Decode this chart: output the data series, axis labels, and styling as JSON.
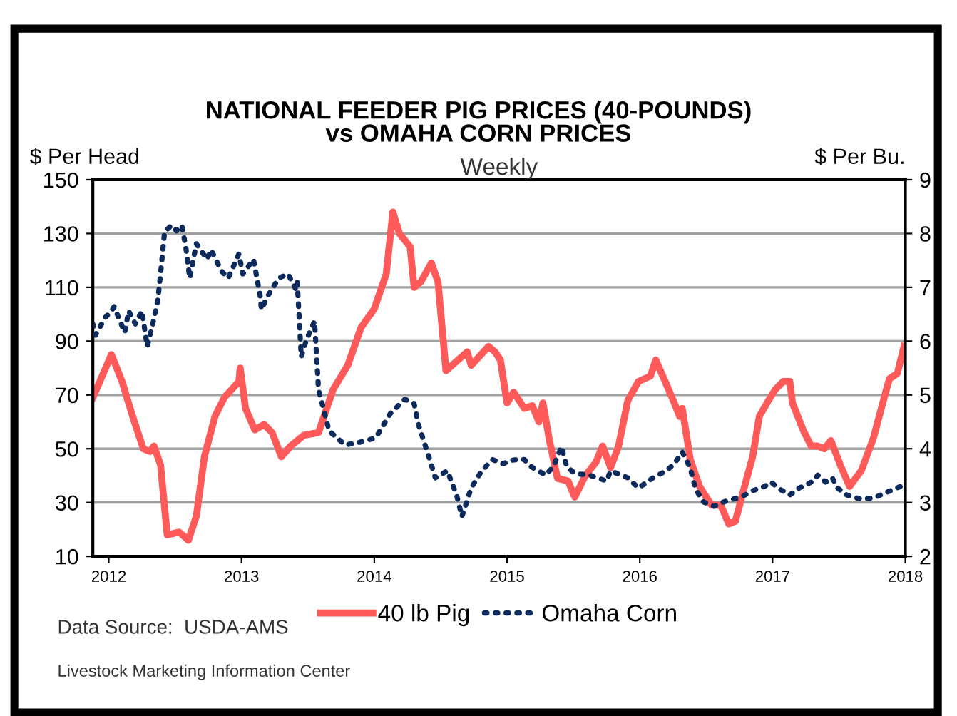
{
  "chart_data": {
    "type": "line",
    "title": "NATIONAL FEEDER PIG PRICES (40-POUNDS)\nvs OMAHA CORN PRICES",
    "subtitle": "Weekly",
    "ylabel": "$ Per Head",
    "y2label": "$ Per Bu.",
    "annotations": [
      "Data Source:  USDA-AMS",
      "Livestock Marketing Information Center"
    ],
    "xlim": [
      2011.88,
      2018
    ],
    "xticks": [
      2012,
      2013,
      2014,
      2015,
      2016,
      2017,
      2018
    ],
    "ylim": [
      10,
      150
    ],
    "yticks": [
      10,
      30,
      50,
      70,
      90,
      110,
      130,
      150
    ],
    "y2lim": [
      2,
      9
    ],
    "y2ticks": [
      2,
      3,
      4,
      5,
      6,
      7,
      8,
      9
    ],
    "grid": "y",
    "legend": "bottom",
    "series": [
      {
        "name": "40 lb Pig",
        "color": "#ff5a5a",
        "line_style": "solid",
        "x": [
          2011.88,
          2012.02,
          2012.1,
          2012.18,
          2012.26,
          2012.31,
          2012.34,
          2012.39,
          2012.44,
          2012.53,
          2012.6,
          2012.66,
          2012.72,
          2012.8,
          2012.87,
          2012.98,
          2012.99,
          2013.03,
          2013.1,
          2013.17,
          2013.23,
          2013.3,
          2013.37,
          2013.47,
          2013.58,
          2013.69,
          2013.8,
          2013.9,
          2014.0,
          2014.09,
          2014.14,
          2014.19,
          2014.27,
          2014.3,
          2014.35,
          2014.43,
          2014.48,
          2014.54,
          2014.7,
          2014.73,
          2014.86,
          2014.91,
          2014.95,
          2015.0,
          2015.05,
          2015.13,
          2015.19,
          2015.24,
          2015.27,
          2015.32,
          2015.38,
          2015.46,
          2015.51,
          2015.59,
          2015.67,
          2015.72,
          2015.78,
          2015.84,
          2015.91,
          2015.99,
          2016.08,
          2016.12,
          2016.2,
          2016.26,
          2016.3,
          2016.32,
          2016.38,
          2016.45,
          2016.54,
          2016.61,
          2016.67,
          2016.72,
          2016.8,
          2016.85,
          2016.9,
          2016.97,
          2017.02,
          2017.08,
          2017.13,
          2017.15,
          2017.23,
          2017.29,
          2017.34,
          2017.39,
          2017.44,
          2017.51,
          2017.58,
          2017.67,
          2017.76,
          2017.83,
          2017.88,
          2017.94,
          2017.99
        ],
        "values": [
          69,
          85,
          75,
          62,
          50,
          49,
          51,
          44,
          18,
          19,
          16,
          25,
          47,
          62,
          69,
          75,
          80,
          65,
          57,
          59,
          56,
          47,
          51,
          55,
          56,
          72,
          81,
          95,
          102,
          115,
          138,
          130,
          125,
          110,
          112,
          119,
          112,
          79,
          86,
          81,
          88,
          86,
          83,
          67,
          71,
          65,
          66,
          60,
          67,
          53,
          39,
          38,
          32,
          40,
          45,
          51,
          43,
          51,
          68,
          75,
          77,
          83,
          74,
          67,
          62,
          65,
          46,
          36,
          29,
          29,
          22,
          23,
          38,
          47,
          62,
          68,
          72,
          75,
          75,
          67,
          57,
          51,
          51,
          50,
          53,
          44,
          36,
          42,
          54,
          67,
          76,
          78,
          88
        ]
      },
      {
        "name": "Omaha Corn",
        "color": "#0d2a5c",
        "line_style": "dotted",
        "axis": "y2",
        "x": [
          2011.88,
          2011.9,
          2011.97,
          2012.02,
          2012.04,
          2012.12,
          2012.15,
          2012.2,
          2012.25,
          2012.29,
          2012.33,
          2012.37,
          2012.39,
          2012.42,
          2012.47,
          2012.51,
          2012.55,
          2012.58,
          2012.61,
          2012.66,
          2012.74,
          2012.77,
          2012.85,
          2012.9,
          2012.98,
          2013.01,
          2013.09,
          2013.14,
          2013.15,
          2013.2,
          2013.28,
          2013.35,
          2013.41,
          2013.42,
          2013.45,
          2013.49,
          2013.55,
          2013.58,
          2013.66,
          2013.78,
          2013.89,
          2014.01,
          2014.12,
          2014.23,
          2014.3,
          2014.33,
          2014.41,
          2014.46,
          2014.55,
          2014.62,
          2014.66,
          2014.73,
          2014.81,
          2014.89,
          2014.97,
          2015.02,
          2015.08,
          2015.13,
          2015.18,
          2015.29,
          2015.35,
          2015.41,
          2015.45,
          2015.51,
          2015.62,
          2015.75,
          2015.78,
          2015.91,
          2015.99,
          2016.1,
          2016.2,
          2016.26,
          2016.32,
          2016.38,
          2016.42,
          2016.48,
          2016.56,
          2016.63,
          2016.7,
          2016.77,
          2016.85,
          2016.94,
          2016.99,
          2017.04,
          2017.13,
          2017.2,
          2017.31,
          2017.34,
          2017.4,
          2017.45,
          2017.49,
          2017.56,
          2017.67,
          2017.77,
          2017.84,
          2017.92,
          2017.99
        ],
        "values": [
          6.32,
          6.11,
          6.43,
          6.56,
          6.64,
          6.16,
          6.56,
          6.32,
          6.56,
          5.9,
          6.3,
          6.77,
          7.25,
          8.02,
          8.15,
          8.05,
          8.15,
          7.75,
          7.17,
          7.81,
          7.52,
          7.7,
          7.3,
          7.17,
          7.62,
          7.25,
          7.52,
          6.85,
          6.59,
          6.85,
          7.17,
          7.25,
          6.96,
          7.09,
          5.71,
          6.03,
          6.37,
          5.1,
          4.33,
          4.07,
          4.12,
          4.2,
          4.65,
          4.92,
          4.84,
          4.47,
          3.86,
          3.46,
          3.59,
          3.14,
          2.74,
          3.27,
          3.59,
          3.8,
          3.72,
          3.78,
          3.8,
          3.8,
          3.67,
          3.51,
          3.67,
          4.04,
          3.67,
          3.54,
          3.51,
          3.4,
          3.59,
          3.46,
          3.27,
          3.46,
          3.59,
          3.72,
          3.94,
          3.64,
          3.25,
          3.01,
          2.93,
          3.01,
          3.06,
          3.11,
          3.22,
          3.3,
          3.38,
          3.27,
          3.14,
          3.27,
          3.4,
          3.51,
          3.38,
          3.46,
          3.27,
          3.14,
          3.06,
          3.09,
          3.17,
          3.25,
          3.33
        ]
      }
    ]
  }
}
